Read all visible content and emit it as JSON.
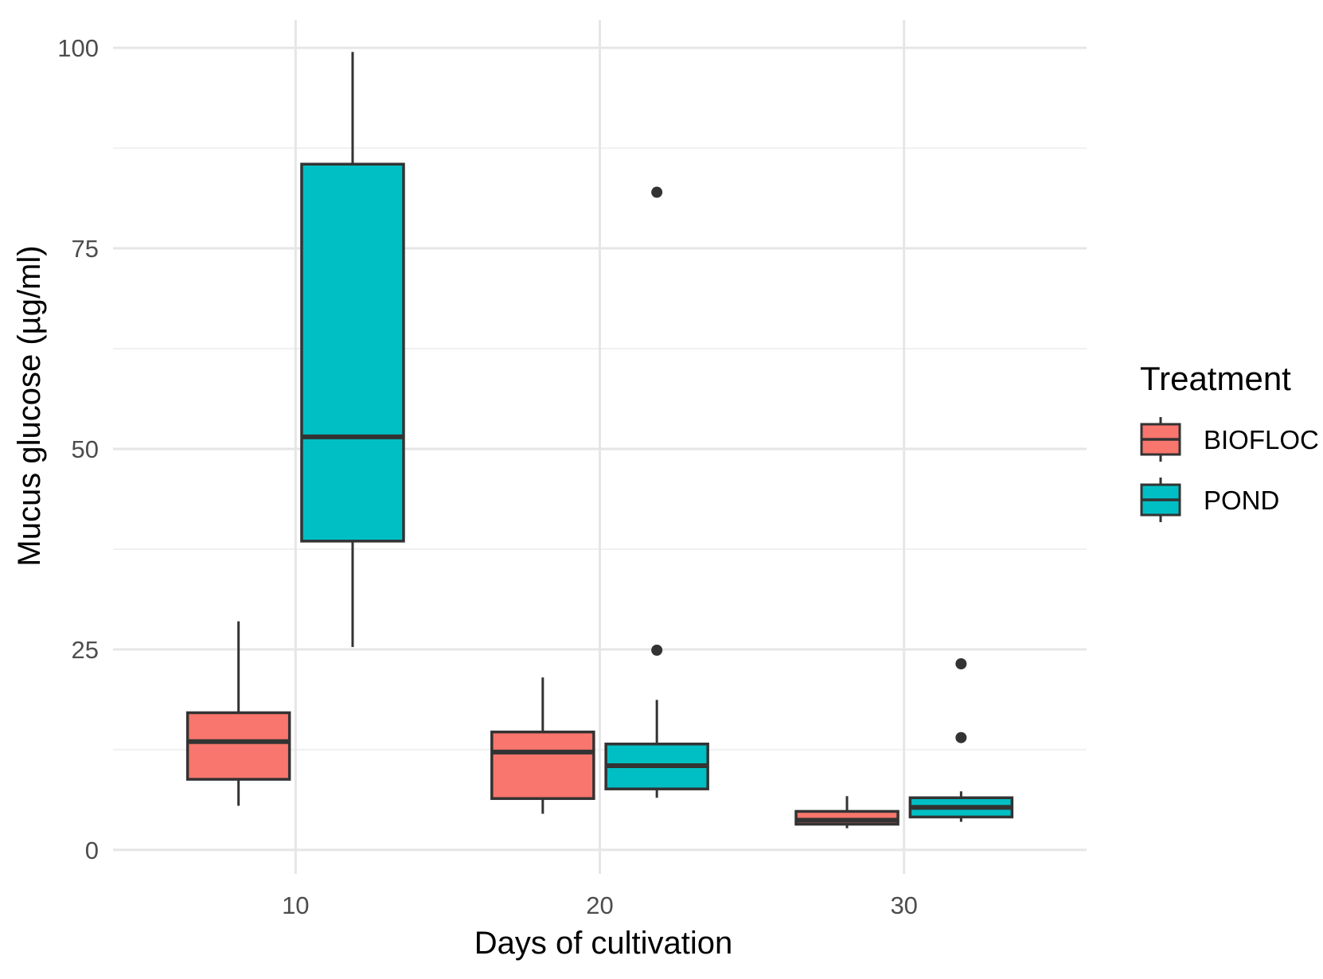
{
  "chart_data": {
    "type": "box",
    "title": "",
    "xlabel": "Days of cultivation",
    "ylabel": "Mucus glucose (µg/ml)",
    "xlim": [
      4,
      36
    ],
    "ylim": [
      -3,
      102
    ],
    "x_ticks": [
      10,
      20,
      30
    ],
    "x_tick_labels": [
      "10",
      "20",
      "30"
    ],
    "y_ticks": [
      0,
      25,
      50,
      75,
      100
    ],
    "y_tick_labels": [
      "0",
      "25",
      "50",
      "75",
      "100"
    ],
    "y_minor_ticks": [
      12.5,
      37.5,
      62.5,
      87.5
    ],
    "grid": true,
    "legend": {
      "title": "Treatment",
      "position": "right",
      "entries": [
        {
          "name": "BIOFLOC",
          "color": "#F8766D"
        },
        {
          "name": "POND",
          "color": "#00BFC4"
        }
      ]
    },
    "series": [
      {
        "name": "BIOFLOC",
        "color": "#F8766D",
        "boxes": [
          {
            "x": 10,
            "low": 5.5,
            "q1": 8.8,
            "median": 13.5,
            "q3": 17.1,
            "high": 28.5,
            "outliers": []
          },
          {
            "x": 20,
            "low": 4.5,
            "q1": 6.4,
            "median": 12.2,
            "q3": 14.7,
            "high": 21.5,
            "outliers": []
          },
          {
            "x": 30,
            "low": 2.7,
            "q1": 3.2,
            "median": 3.7,
            "q3": 4.8,
            "high": 6.7,
            "outliers": []
          }
        ]
      },
      {
        "name": "POND",
        "color": "#00BFC4",
        "boxes": [
          {
            "x": 10,
            "low": 25.3,
            "q1": 38.5,
            "median": 51.5,
            "q3": 85.5,
            "high": 99.5,
            "outliers": []
          },
          {
            "x": 20,
            "low": 6.5,
            "q1": 7.6,
            "median": 10.5,
            "q3": 13.2,
            "high": 18.7,
            "outliers": [
              24.9,
              82.0
            ]
          },
          {
            "x": 30,
            "low": 3.5,
            "q1": 4.1,
            "median": 5.3,
            "q3": 6.5,
            "high": 7.3,
            "outliers": [
              14.0,
              23.2
            ]
          }
        ]
      }
    ]
  }
}
